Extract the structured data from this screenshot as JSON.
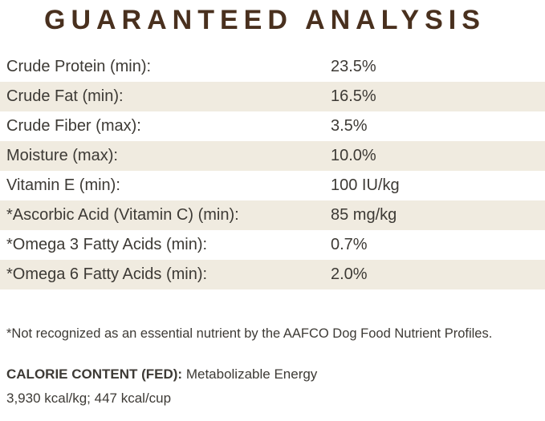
{
  "title": "GUARANTEED ANALYSIS",
  "colors": {
    "title_brown": "#49301e",
    "body_text": "#3d3a35",
    "stripe_beige": "#f0ebe0",
    "background": "#ffffff"
  },
  "table": {
    "rows": [
      {
        "label": "Crude Protein (min):",
        "value": "23.5%"
      },
      {
        "label": "Crude Fat (min):",
        "value": "16.5%"
      },
      {
        "label": "Crude Fiber (max):",
        "value": "3.5%"
      },
      {
        "label": "Moisture (max):",
        "value": "10.0%"
      },
      {
        "label": "Vitamin E (min):",
        "value": "100 IU/kg"
      },
      {
        "label": "*Ascorbic Acid (Vitamin C) (min):",
        "value": "85 mg/kg"
      },
      {
        "label": "*Omega 3 Fatty Acids (min):",
        "value": "0.7%"
      },
      {
        "label": "*Omega 6 Fatty Acids (min):",
        "value": "2.0%"
      }
    ]
  },
  "footnote": "*Not recognized as an essential nutrient by the AAFCO Dog Food Nutrient Profiles.",
  "calorie": {
    "heading": "CALORIE CONTENT (FED):",
    "description": "Metabolizable Energy",
    "values": "3,930 kcal/kg; 447 kcal/cup"
  }
}
